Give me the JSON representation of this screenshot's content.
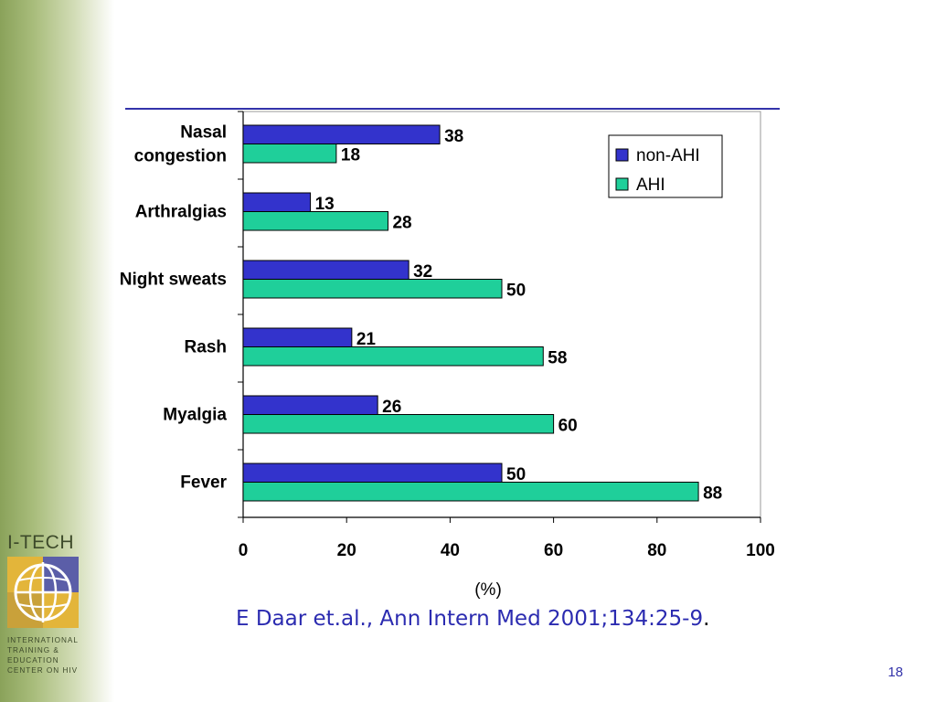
{
  "brand": {
    "title": "I-TECH",
    "caption": [
      "International",
      "Training &",
      "Education",
      "Center on HIV"
    ]
  },
  "colors": {
    "non_ahi": "#3333cc",
    "ahi": "#1fcf9a",
    "sidebar": "#8aa25a",
    "citation": "#2b2bb0"
  },
  "citation": {
    "text": "E Daar et.al., Ann Intern Med 2001;134:25-9",
    "suffix": "."
  },
  "page_number": "18",
  "chart_data": {
    "type": "bar",
    "orientation": "horizontal",
    "categories": [
      [
        "Nasal",
        "congestion"
      ],
      [
        "Arthralgias"
      ],
      [
        "Night sweats"
      ],
      [
        "Rash"
      ],
      [
        "Myalgia"
      ],
      [
        "Fever"
      ]
    ],
    "series": [
      {
        "name": "non-AHI",
        "color": "#3333cc",
        "values": [
          38,
          13,
          32,
          21,
          26,
          50
        ]
      },
      {
        "name": "AHI",
        "color": "#1fcf9a",
        "values": [
          18,
          28,
          50,
          58,
          60,
          88
        ]
      }
    ],
    "xlabel": "(%)",
    "xlim": [
      0,
      100
    ],
    "xticks": [
      "0",
      "20",
      "40",
      "60",
      "80",
      "100"
    ],
    "legend_position": "top-right",
    "grid": false
  }
}
